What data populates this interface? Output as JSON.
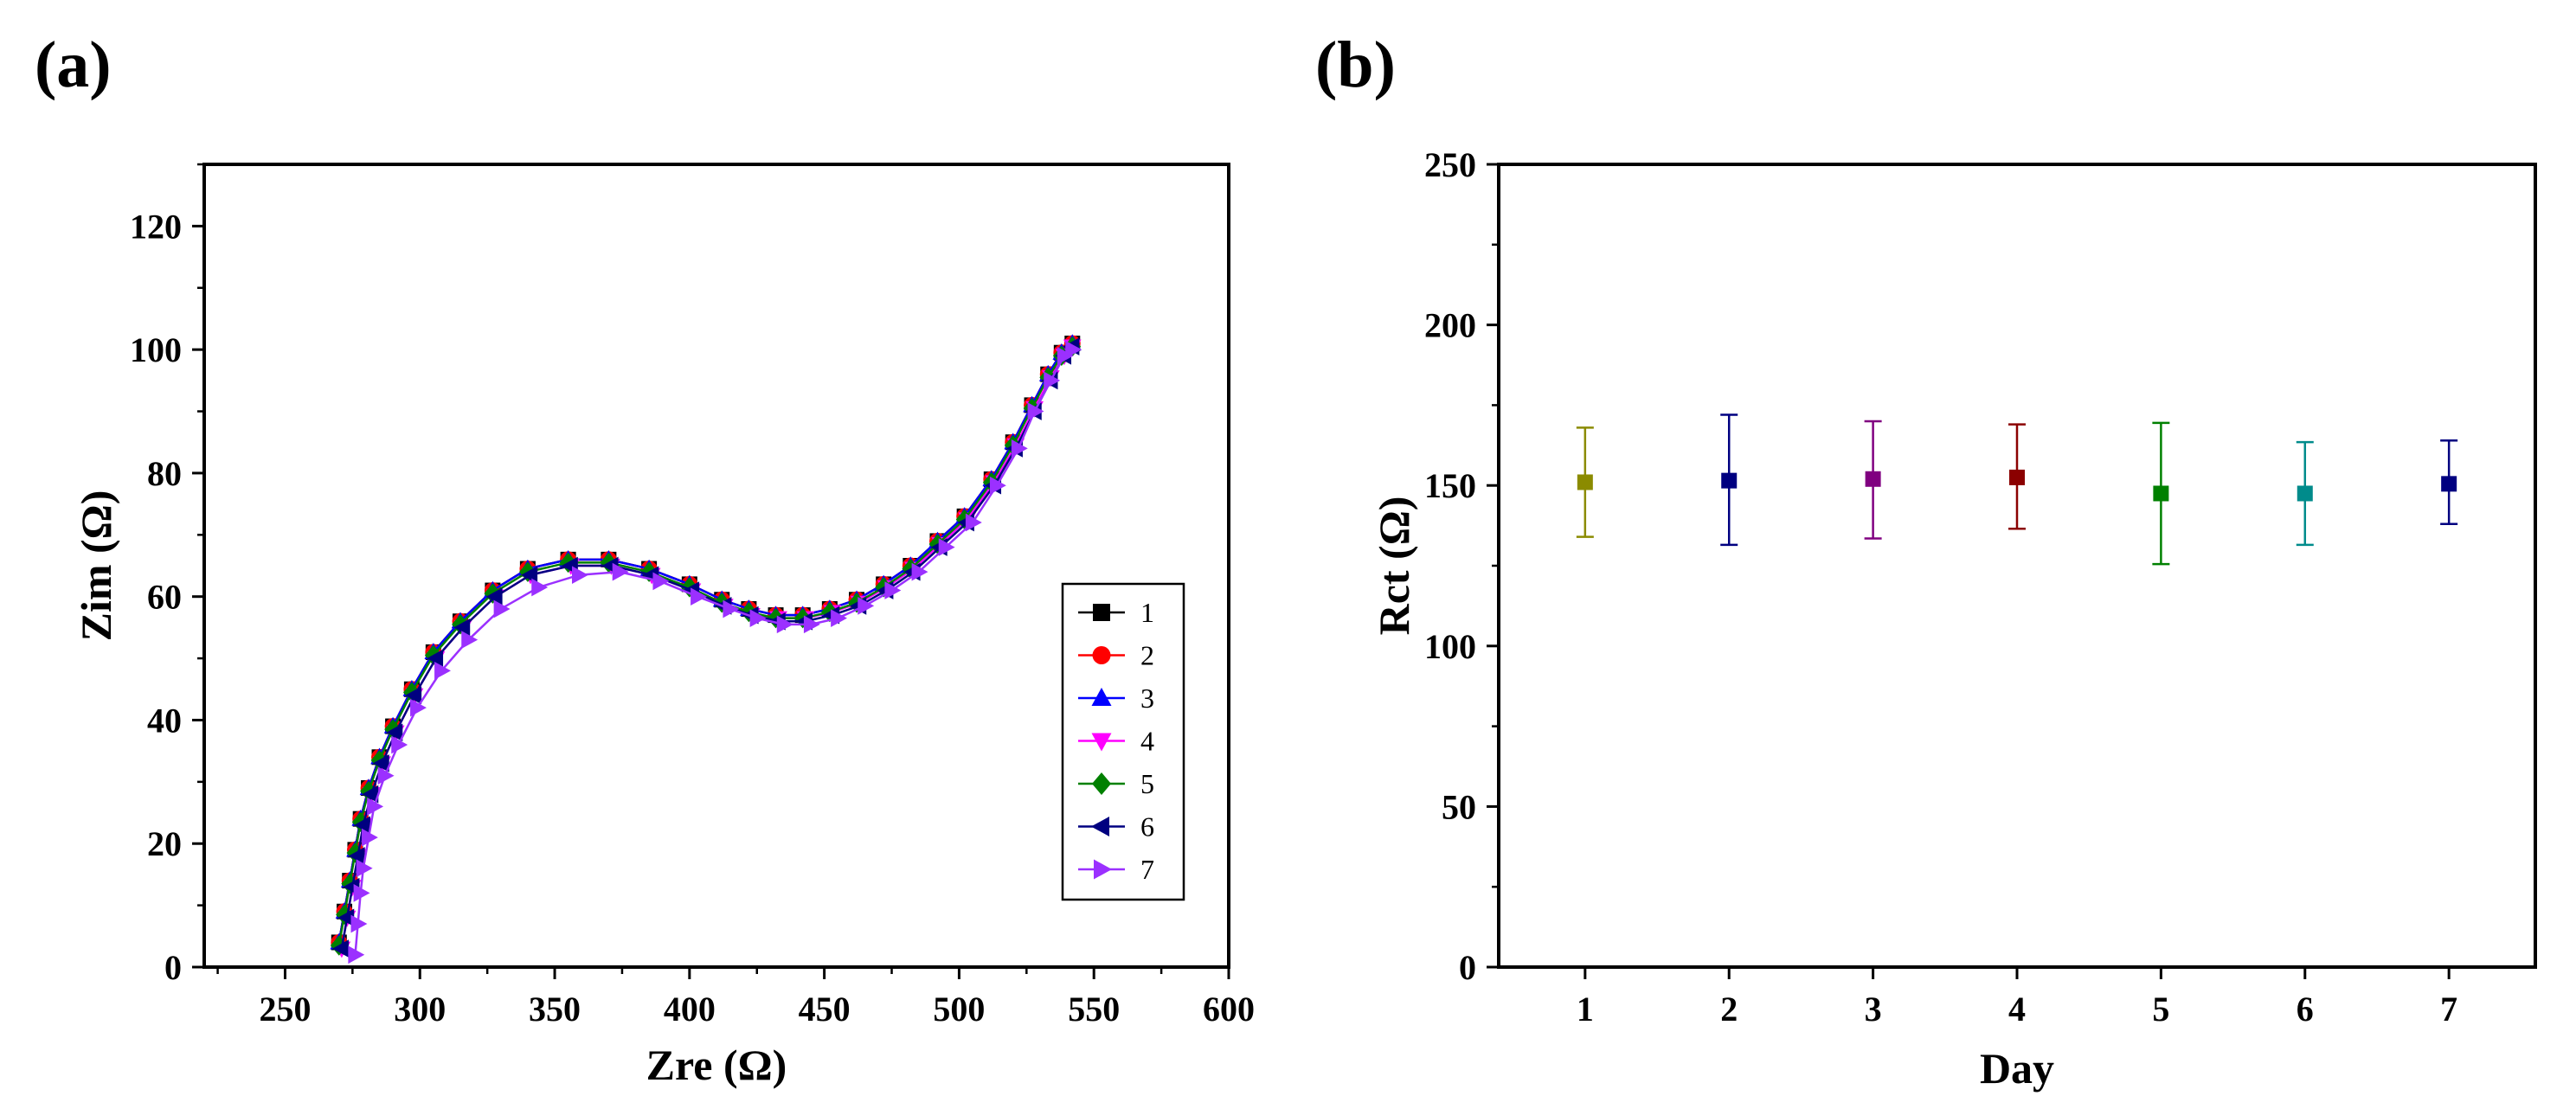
{
  "chart_data": [
    {
      "panel_label": "(a)",
      "type": "scatter",
      "title": "",
      "xlabel": "Zre (Ω)",
      "ylabel": "Zim (Ω)",
      "xlim": [
        220,
        600
      ],
      "ylim": [
        0,
        130
      ],
      "x_ticks": [
        250,
        300,
        350,
        400,
        450,
        500,
        550,
        600
      ],
      "y_ticks": [
        0,
        20,
        40,
        60,
        80,
        100,
        120
      ],
      "legend_position": "right",
      "series": [
        {
          "name": "1",
          "color": "#000000",
          "marker": "square",
          "x": [
            270,
            272,
            274,
            276,
            278,
            281,
            285,
            290,
            297,
            305,
            315,
            327,
            340,
            355,
            370,
            385,
            400,
            412,
            422,
            432,
            442,
            452,
            462,
            472,
            482,
            492,
            502,
            512,
            520,
            527,
            533,
            538,
            542
          ],
          "y": [
            4,
            9,
            14,
            19,
            24,
            29,
            34,
            39,
            45,
            51,
            56,
            61,
            64.5,
            66,
            66,
            64.5,
            62,
            59.5,
            58,
            57,
            57,
            58,
            59.5,
            62,
            65,
            69,
            73,
            79,
            85,
            91,
            96,
            99.5,
            101
          ]
        },
        {
          "name": "2",
          "color": "#ff0000",
          "marker": "circle",
          "x": [
            270,
            272,
            274,
            276,
            278,
            281,
            285,
            290,
            297,
            305,
            315,
            327,
            340,
            355,
            370,
            385,
            400,
            412,
            422,
            432,
            442,
            452,
            462,
            472,
            482,
            492,
            502,
            512,
            520,
            527,
            533,
            538,
            542
          ],
          "y": [
            4,
            9,
            14,
            19,
            24,
            29,
            34,
            39,
            45,
            51,
            56,
            61,
            64.5,
            66,
            66,
            64.5,
            62,
            59.5,
            58,
            57,
            57,
            58,
            59.5,
            62,
            65,
            69,
            73,
            79,
            85,
            91,
            96,
            99.5,
            101
          ]
        },
        {
          "name": "3",
          "color": "#0000ff",
          "marker": "triangle-up",
          "x": [
            270,
            272,
            274,
            276,
            278,
            281,
            285,
            290,
            297,
            305,
            315,
            327,
            340,
            355,
            370,
            385,
            400,
            412,
            422,
            432,
            442,
            452,
            462,
            472,
            482,
            492,
            502,
            512,
            520,
            527,
            533,
            538,
            542
          ],
          "y": [
            4,
            9,
            14,
            19,
            24,
            29,
            34,
            39,
            45,
            51,
            56,
            61,
            64.5,
            66,
            66,
            64.5,
            62,
            59.5,
            58,
            57,
            57,
            58,
            59.5,
            62,
            65,
            69,
            73,
            79,
            85,
            91,
            96,
            99.5,
            101
          ]
        },
        {
          "name": "4",
          "color": "#ff00ff",
          "marker": "triangle-down",
          "x": [
            271,
            273,
            275,
            277,
            279,
            282,
            286,
            291,
            298,
            306,
            316,
            328,
            341,
            356,
            371,
            386,
            401,
            413,
            423,
            433,
            443,
            453,
            463,
            473,
            483,
            493,
            503,
            513,
            521,
            528,
            534,
            539,
            542
          ],
          "y": [
            3,
            8,
            13,
            18,
            23,
            28,
            33,
            38,
            44,
            50,
            55,
            60,
            63.5,
            65,
            65,
            63.5,
            61,
            58.5,
            57,
            56.5,
            56.5,
            57.5,
            59,
            61.5,
            64.5,
            68.5,
            72.5,
            78.5,
            84.5,
            90.5,
            95.5,
            99,
            100.5
          ]
        },
        {
          "name": "5",
          "color": "#008000",
          "marker": "diamond",
          "x": [
            270,
            272,
            274,
            276,
            278,
            281,
            285,
            290,
            297,
            305,
            315,
            327,
            340,
            355,
            370,
            385,
            400,
            412,
            422,
            432,
            442,
            452,
            462,
            472,
            482,
            492,
            502,
            512,
            520,
            527,
            533,
            538,
            542
          ],
          "y": [
            3.5,
            8.5,
            13.5,
            18.5,
            23.5,
            28.5,
            33.5,
            38.5,
            44.5,
            50.5,
            55.5,
            60.5,
            64,
            65.5,
            65.5,
            64,
            61.5,
            59,
            57.5,
            56.5,
            56.5,
            57.5,
            59,
            61.5,
            64.5,
            68.5,
            72.5,
            78.5,
            84.5,
            90.5,
            95.5,
            99,
            100.5
          ]
        },
        {
          "name": "6",
          "color": "#000080",
          "marker": "triangle-left",
          "x": [
            271,
            273,
            275,
            277,
            279,
            282,
            286,
            291,
            298,
            306,
            316,
            328,
            341,
            356,
            371,
            386,
            401,
            413,
            423,
            433,
            443,
            453,
            463,
            473,
            483,
            493,
            503,
            513,
            521,
            528,
            534,
            539,
            542
          ],
          "y": [
            3,
            8,
            13,
            18,
            23,
            28,
            33,
            38,
            44,
            50,
            55,
            60,
            63.5,
            65,
            65,
            63.5,
            61,
            58.5,
            57,
            56,
            56,
            57,
            58.5,
            61,
            64,
            68,
            72,
            78,
            84,
            90,
            95,
            99,
            100.5
          ]
        },
        {
          "name": "7",
          "color": "#9b30ff",
          "marker": "triangle-right",
          "x": [
            276,
            277,
            278,
            279,
            281,
            283,
            287,
            292,
            299,
            308,
            318,
            330,
            344,
            359,
            374,
            389,
            403,
            415,
            425,
            435,
            445,
            455,
            465,
            475,
            485,
            495,
            505,
            514,
            522,
            528,
            534,
            539,
            542
          ],
          "y": [
            2,
            7,
            12,
            16,
            21,
            26,
            31,
            36,
            42,
            48,
            53,
            58,
            61.5,
            63.5,
            64,
            62.5,
            60,
            58,
            56.5,
            55.5,
            55.5,
            56.5,
            58.5,
            61,
            64,
            68,
            72,
            78,
            84,
            90,
            95,
            99,
            100
          ]
        }
      ]
    },
    {
      "panel_label": "(b)",
      "type": "scatter",
      "title": "",
      "xlabel": "Day",
      "ylabel": "Rct (Ω)",
      "xlim": [
        0.4,
        7.6
      ],
      "ylim": [
        0,
        250
      ],
      "x_ticks": [
        1,
        2,
        3,
        4,
        5,
        6,
        7
      ],
      "y_ticks": [
        0,
        50,
        100,
        150,
        200,
        250
      ],
      "series": [
        {
          "name": "Rct",
          "x": [
            1,
            2,
            3,
            4,
            5,
            6,
            7
          ],
          "y": [
            151,
            151.5,
            152,
            152.5,
            147.5,
            147.5,
            150.5
          ],
          "err_low": [
            134,
            131.5,
            133.5,
            136.5,
            125.5,
            131.5,
            138
          ],
          "err_high": [
            168,
            172,
            170,
            169,
            169.5,
            163.5,
            164
          ],
          "colors": [
            "#8b8b00",
            "#000080",
            "#800080",
            "#8b0000",
            "#008000",
            "#008b8b",
            "#000080"
          ]
        }
      ]
    }
  ]
}
